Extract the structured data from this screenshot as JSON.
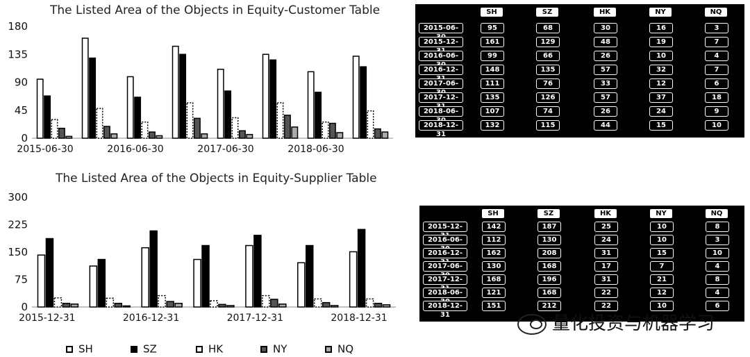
{
  "legend": [
    "SH",
    "SZ",
    "HK",
    "NY",
    "NQ"
  ],
  "watermark_text": "量化投资与机器学习",
  "chart_data": [
    {
      "type": "bar",
      "title": "The Listed Area of the Objects in Equity-Customer Table",
      "categories": [
        "2015-06-30",
        "2015-12-31",
        "2016-06-30",
        "2016-12-31",
        "2017-06-30",
        "2017-12-31",
        "2018-06-30",
        "2018-12-31"
      ],
      "x_tick_labels": [
        "2015-06-30",
        "2016-06-30",
        "2017-06-30",
        "2018-06-30"
      ],
      "ylim": [
        0,
        180
      ],
      "y_ticks": [
        "0",
        "45",
        "90",
        "135",
        "180"
      ],
      "series": [
        {
          "name": "SH",
          "values": [
            95,
            161,
            99,
            148,
            111,
            135,
            107,
            132
          ]
        },
        {
          "name": "SZ",
          "values": [
            68,
            129,
            66,
            135,
            76,
            126,
            74,
            115
          ]
        },
        {
          "name": "HK",
          "values": [
            30,
            48,
            26,
            57,
            33,
            57,
            26,
            44
          ]
        },
        {
          "name": "NY",
          "values": [
            16,
            19,
            10,
            32,
            12,
            37,
            24,
            15
          ]
        },
        {
          "name": "NQ",
          "values": [
            3,
            7,
            4,
            7,
            6,
            18,
            9,
            10
          ]
        }
      ]
    },
    {
      "type": "bar",
      "title": "The Listed Area of the Objects in Equity-Supplier Table",
      "categories": [
        "2015-12-31",
        "2016-06-30",
        "2016-12-31",
        "2017-06-30",
        "2017-12-31",
        "2018-06-30",
        "2018-12-31"
      ],
      "x_tick_labels": [
        "2015-12-31",
        "2016-12-31",
        "2017-12-31",
        "2018-12-31"
      ],
      "ylim": [
        0,
        300
      ],
      "y_ticks": [
        "0",
        "75",
        "150",
        "225",
        "300"
      ],
      "series": [
        {
          "name": "SH",
          "values": [
            142,
            112,
            162,
            130,
            168,
            121,
            151
          ]
        },
        {
          "name": "SZ",
          "values": [
            187,
            130,
            208,
            168,
            196,
            168,
            212
          ]
        },
        {
          "name": "HK",
          "values": [
            25,
            24,
            31,
            17,
            31,
            22,
            22
          ]
        },
        {
          "name": "NY",
          "values": [
            10,
            10,
            15,
            7,
            21,
            12,
            10
          ]
        },
        {
          "name": "NQ",
          "values": [
            8,
            3,
            10,
            4,
            8,
            4,
            6
          ]
        }
      ]
    }
  ],
  "tables": [
    {
      "headers": [
        "SH",
        "SZ",
        "HK",
        "NY",
        "NQ"
      ],
      "rows": [
        {
          "date": "2015-06-30",
          "values": [
            "95",
            "68",
            "30",
            "16",
            "3"
          ]
        },
        {
          "date": "2015-12-31",
          "values": [
            "161",
            "129",
            "48",
            "19",
            "7"
          ]
        },
        {
          "date": "2016-06-30",
          "values": [
            "99",
            "66",
            "26",
            "10",
            "4"
          ]
        },
        {
          "date": "2016-12-31",
          "values": [
            "148",
            "135",
            "57",
            "32",
            "7"
          ]
        },
        {
          "date": "2017-06-30",
          "values": [
            "111",
            "76",
            "33",
            "12",
            "6"
          ]
        },
        {
          "date": "2017-12-31",
          "values": [
            "135",
            "126",
            "57",
            "37",
            "18"
          ]
        },
        {
          "date": "2018-06-30",
          "values": [
            "107",
            "74",
            "26",
            "24",
            "9"
          ]
        },
        {
          "date": "2018-12-31",
          "values": [
            "132",
            "115",
            "44",
            "15",
            "10"
          ]
        }
      ]
    },
    {
      "headers": [
        "SH",
        "SZ",
        "HK",
        "NY",
        "NQ"
      ],
      "rows": [
        {
          "date": "2015-12-31",
          "values": [
            "142",
            "187",
            "25",
            "10",
            "8"
          ]
        },
        {
          "date": "2016-06-30",
          "values": [
            "112",
            "130",
            "24",
            "10",
            "3"
          ]
        },
        {
          "date": "2016-12-31",
          "values": [
            "162",
            "208",
            "31",
            "15",
            "10"
          ]
        },
        {
          "date": "2017-06-30",
          "values": [
            "130",
            "168",
            "17",
            "7",
            "4"
          ]
        },
        {
          "date": "2017-12-31",
          "values": [
            "168",
            "196",
            "31",
            "21",
            "8"
          ]
        },
        {
          "date": "2018-06-30",
          "values": [
            "121",
            "168",
            "22",
            "12",
            "4"
          ]
        },
        {
          "date": "2018-12-31",
          "values": [
            "151",
            "212",
            "22",
            "10",
            "6"
          ]
        }
      ]
    }
  ]
}
